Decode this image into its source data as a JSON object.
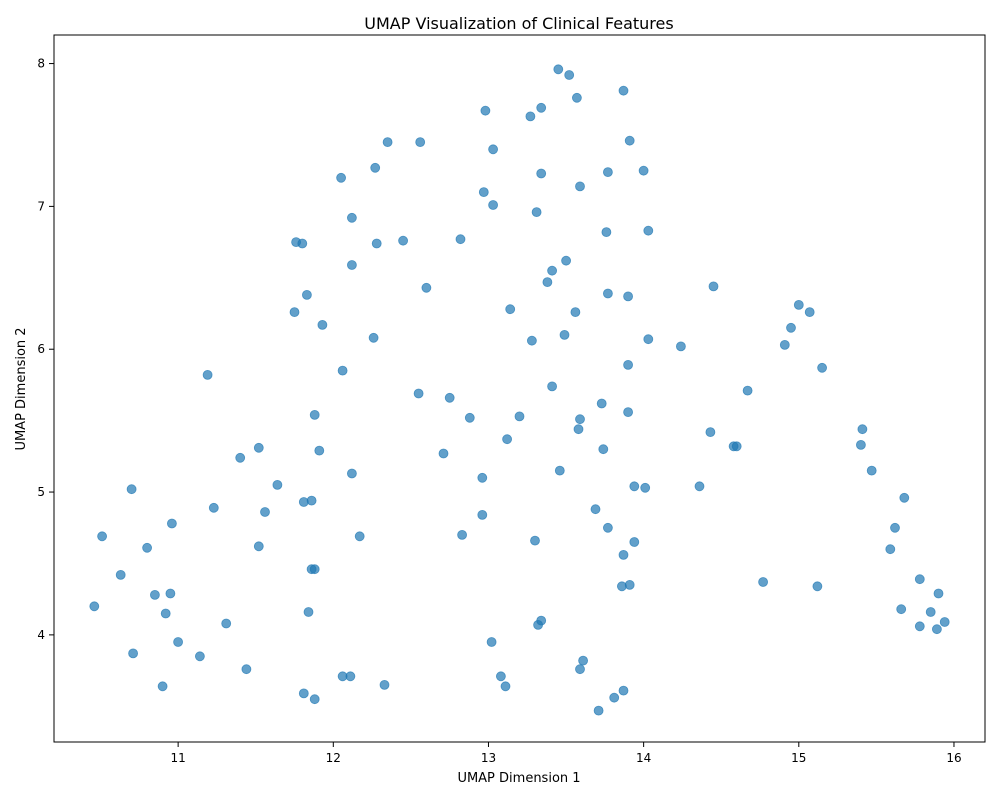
{
  "chart_data": {
    "type": "scatter",
    "title": "UMAP Visualization of Clinical Features",
    "xlabel": "UMAP Dimension 1",
    "ylabel": "UMAP Dimension 2",
    "xlim": [
      10.2,
      16.2
    ],
    "ylim": [
      3.25,
      8.2
    ],
    "xticks": [
      11,
      12,
      13,
      14,
      15,
      16
    ],
    "yticks": [
      4,
      5,
      6,
      7,
      8
    ],
    "grid": false,
    "color": "#1f77b4",
    "points": [
      [
        13.45,
        7.96
      ],
      [
        13.52,
        7.92
      ],
      [
        13.87,
        7.81
      ],
      [
        13.57,
        7.76
      ],
      [
        12.98,
        7.67
      ],
      [
        13.34,
        7.69
      ],
      [
        13.27,
        7.63
      ],
      [
        12.35,
        7.45
      ],
      [
        12.56,
        7.45
      ],
      [
        13.91,
        7.46
      ],
      [
        13.03,
        7.4
      ],
      [
        12.27,
        7.27
      ],
      [
        12.05,
        7.2
      ],
      [
        13.34,
        7.23
      ],
      [
        13.77,
        7.24
      ],
      [
        14.0,
        7.25
      ],
      [
        12.97,
        7.1
      ],
      [
        13.59,
        7.14
      ],
      [
        13.03,
        7.01
      ],
      [
        12.12,
        6.92
      ],
      [
        13.31,
        6.96
      ],
      [
        13.76,
        6.82
      ],
      [
        14.03,
        6.83
      ],
      [
        11.76,
        6.75
      ],
      [
        11.8,
        6.74
      ],
      [
        12.28,
        6.74
      ],
      [
        12.45,
        6.76
      ],
      [
        12.82,
        6.77
      ],
      [
        12.12,
        6.59
      ],
      [
        13.5,
        6.62
      ],
      [
        13.41,
        6.55
      ],
      [
        13.38,
        6.47
      ],
      [
        12.6,
        6.43
      ],
      [
        14.45,
        6.44
      ],
      [
        11.83,
        6.38
      ],
      [
        13.77,
        6.39
      ],
      [
        13.9,
        6.37
      ],
      [
        11.75,
        6.26
      ],
      [
        13.14,
        6.28
      ],
      [
        13.56,
        6.26
      ],
      [
        15.0,
        6.31
      ],
      [
        15.07,
        6.26
      ],
      [
        11.93,
        6.17
      ],
      [
        14.95,
        6.15
      ],
      [
        12.26,
        6.08
      ],
      [
        13.28,
        6.06
      ],
      [
        13.49,
        6.1
      ],
      [
        14.03,
        6.07
      ],
      [
        14.24,
        6.02
      ],
      [
        14.91,
        6.03
      ],
      [
        11.19,
        5.82
      ],
      [
        12.06,
        5.85
      ],
      [
        13.9,
        5.89
      ],
      [
        15.15,
        5.87
      ],
      [
        12.55,
        5.69
      ],
      [
        12.75,
        5.66
      ],
      [
        13.41,
        5.74
      ],
      [
        14.67,
        5.71
      ],
      [
        11.88,
        5.54
      ],
      [
        12.88,
        5.52
      ],
      [
        13.2,
        5.53
      ],
      [
        13.59,
        5.51
      ],
      [
        13.73,
        5.62
      ],
      [
        13.9,
        5.56
      ],
      [
        13.58,
        5.44
      ],
      [
        14.43,
        5.42
      ],
      [
        15.41,
        5.44
      ],
      [
        11.52,
        5.31
      ],
      [
        11.91,
        5.29
      ],
      [
        12.71,
        5.27
      ],
      [
        13.12,
        5.37
      ],
      [
        13.74,
        5.3
      ],
      [
        14.58,
        5.32
      ],
      [
        14.6,
        5.32
      ],
      [
        15.4,
        5.33
      ],
      [
        11.4,
        5.24
      ],
      [
        12.12,
        5.13
      ],
      [
        12.96,
        5.1
      ],
      [
        13.46,
        5.15
      ],
      [
        15.47,
        5.15
      ],
      [
        10.7,
        5.02
      ],
      [
        11.64,
        5.05
      ],
      [
        13.94,
        5.04
      ],
      [
        14.01,
        5.03
      ],
      [
        14.36,
        5.04
      ],
      [
        15.68,
        4.96
      ],
      [
        11.81,
        4.93
      ],
      [
        11.86,
        4.94
      ],
      [
        11.23,
        4.89
      ],
      [
        11.56,
        4.86
      ],
      [
        12.96,
        4.84
      ],
      [
        13.69,
        4.88
      ],
      [
        10.96,
        4.78
      ],
      [
        13.77,
        4.75
      ],
      [
        15.62,
        4.75
      ],
      [
        10.51,
        4.69
      ],
      [
        12.17,
        4.69
      ],
      [
        12.83,
        4.7
      ],
      [
        13.3,
        4.66
      ],
      [
        13.94,
        4.65
      ],
      [
        10.8,
        4.61
      ],
      [
        11.52,
        4.62
      ],
      [
        15.59,
        4.6
      ],
      [
        13.87,
        4.56
      ],
      [
        11.86,
        4.46
      ],
      [
        11.88,
        4.46
      ],
      [
        10.63,
        4.42
      ],
      [
        14.77,
        4.37
      ],
      [
        15.78,
        4.39
      ],
      [
        13.86,
        4.34
      ],
      [
        13.91,
        4.35
      ],
      [
        15.12,
        4.34
      ],
      [
        10.85,
        4.28
      ],
      [
        10.95,
        4.29
      ],
      [
        15.9,
        4.29
      ],
      [
        10.46,
        4.2
      ],
      [
        10.92,
        4.15
      ],
      [
        11.84,
        4.16
      ],
      [
        15.66,
        4.18
      ],
      [
        15.85,
        4.16
      ],
      [
        11.31,
        4.08
      ],
      [
        13.32,
        4.07
      ],
      [
        13.34,
        4.1
      ],
      [
        15.78,
        4.06
      ],
      [
        15.89,
        4.04
      ],
      [
        15.94,
        4.09
      ],
      [
        11.0,
        3.95
      ],
      [
        13.02,
        3.95
      ],
      [
        10.71,
        3.87
      ],
      [
        11.14,
        3.85
      ],
      [
        13.61,
        3.82
      ],
      [
        11.44,
        3.76
      ],
      [
        13.59,
        3.76
      ],
      [
        12.06,
        3.71
      ],
      [
        12.11,
        3.71
      ],
      [
        13.08,
        3.71
      ],
      [
        12.33,
        3.65
      ],
      [
        13.11,
        3.64
      ],
      [
        10.9,
        3.64
      ],
      [
        13.87,
        3.61
      ],
      [
        11.81,
        3.59
      ],
      [
        13.81,
        3.56
      ],
      [
        11.88,
        3.55
      ],
      [
        13.71,
        3.47
      ]
    ]
  }
}
